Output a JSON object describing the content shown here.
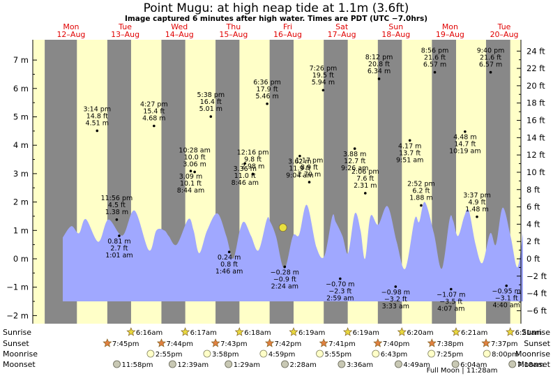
{
  "header": {
    "title": "Point Mugu: at high  neap tide at 1.1m (3.6ft)",
    "subtitle": "Image captured 6 minutes after high water. Times are PDT (UTC −7.0hrs)"
  },
  "chart_data": {
    "type": "area",
    "x_unit": "hours since Mon 12-Aug 00:00 PDT",
    "xlim": [
      0,
      204
    ],
    "ylim_m": [
      -2.2,
      7.55
    ],
    "ylim_ft": [
      -7.2,
      24.8
    ],
    "y_ticks_m": [
      -2,
      -1,
      0,
      1,
      2,
      3,
      4,
      5,
      6,
      7
    ],
    "y_ticks_m_labels": [
      "−2 m",
      "−1 m",
      "0 m",
      "1 m",
      "2 m",
      "3 m",
      "4 m",
      "5 m",
      "6 m",
      "7 m"
    ],
    "y_ticks_ft": [
      -6,
      -4,
      -2,
      0,
      2,
      4,
      6,
      8,
      10,
      12,
      14,
      16,
      18,
      20,
      22,
      24
    ],
    "y_ticks_ft_labels": [
      "−6 ft",
      "−4 ft",
      "−2 ft",
      "0 ft",
      "2 ft",
      "4 ft",
      "6 ft",
      "8 ft",
      "10 ft",
      "12 ft",
      "14 ft",
      "16 ft",
      "18 ft",
      "20 ft",
      "22 ft",
      "24 ft"
    ],
    "days": [
      {
        "name": "Mon",
        "date": "12–Aug"
      },
      {
        "name": "Tue",
        "date": "13–Aug"
      },
      {
        "name": "Wed",
        "date": "14–Aug"
      },
      {
        "name": "Thu",
        "date": "15–Aug"
      },
      {
        "name": "Fri",
        "date": "16–Aug"
      },
      {
        "name": "Sat",
        "date": "17–Aug"
      },
      {
        "name": "Sun",
        "date": "18–Aug"
      },
      {
        "name": "Mon",
        "date": "19–Aug"
      },
      {
        "name": "Tue",
        "date": "20–Aug"
      }
    ],
    "tide_curve": [
      [
        0,
        0.75
      ],
      [
        3.8,
        1.15
      ],
      [
        7.2,
        0.9
      ],
      [
        10.2,
        1.4
      ],
      [
        15.8,
        0.6
      ],
      [
        20.2,
        1.38
      ],
      [
        26.5,
        0.82
      ],
      [
        31.8,
        1.7
      ],
      [
        38.2,
        0.3
      ],
      [
        41.5,
        1.0
      ],
      [
        45,
        1.0
      ],
      [
        47,
        0.8
      ],
      [
        50.5,
        0.5
      ],
      [
        55.7,
        1.4
      ],
      [
        58,
        1.0
      ],
      [
        60.5,
        0.2
      ],
      [
        64,
        1.0
      ],
      [
        68.5,
        1.6
      ],
      [
        72.5,
        0.8
      ],
      [
        75.5,
        0.0
      ],
      [
        78.5,
        1.0
      ],
      [
        80.5,
        1.3
      ],
      [
        83.5,
        0.8
      ],
      [
        86.8,
        0.3
      ],
      [
        90.5,
        1.4
      ],
      [
        92,
        1.3
      ],
      [
        94.5,
        0.8
      ],
      [
        98.2,
        -0.35
      ],
      [
        102,
        0.8
      ],
      [
        104.8,
        0.85
      ],
      [
        108.2,
        1.9
      ],
      [
        112.5,
        0.4
      ],
      [
        116,
        0.1
      ],
      [
        119.5,
        1.5
      ],
      [
        121,
        1.3
      ],
      [
        124,
        0.8
      ],
      [
        126.5,
        0.2
      ],
      [
        129.5,
        1.6
      ],
      [
        132,
        1.0
      ],
      [
        134,
        0.0
      ],
      [
        136.4,
        1.5
      ],
      [
        139.8,
        1.2
      ],
      [
        144,
        1.85
      ],
      [
        148,
        0.6
      ],
      [
        151.8,
        -0.35
      ],
      [
        156,
        1.4
      ],
      [
        158,
        1.3
      ],
      [
        160.5,
        2.0
      ],
      [
        164.5,
        0.9
      ],
      [
        168,
        -0.35
      ],
      [
        171.5,
        1.4
      ],
      [
        173,
        1.35
      ],
      [
        175.2,
        0.8
      ],
      [
        178,
        1.5
      ],
      [
        180,
        1.7
      ],
      [
        183,
        0.5
      ],
      [
        186,
        -0.15
      ],
      [
        189.5,
        0.9
      ],
      [
        192,
        0.5
      ],
      [
        195,
        1.8
      ],
      [
        198.5,
        0.8
      ],
      [
        201.5,
        -0.3
      ],
      [
        204,
        0.9
      ]
    ],
    "night_bands": [
      [
        -8,
        6.27
      ],
      [
        19.75,
        30.28
      ],
      [
        43.73,
        54.3
      ],
      [
        67.72,
        78.32
      ],
      [
        91.7,
        102.32
      ],
      [
        115.68,
        126.32
      ],
      [
        139.67,
        150.33
      ],
      [
        163.63,
        174.35
      ],
      [
        187.62,
        198.35
      ]
    ],
    "tide_labels": [
      {
        "hours": 15.23,
        "time": "3:14 pm",
        "ft": "14.8 ft",
        "m": "4.51 m",
        "type": "high"
      },
      {
        "hours": 23.93,
        "time": "11:56 pm",
        "ft": "4.5 ft",
        "m": "1.38 m",
        "type": "high"
      },
      {
        "hours": 25.02,
        "time": "1:01 am",
        "ft": "2.7 ft",
        "m": "0.81 m",
        "type": "low"
      },
      {
        "hours": 40.45,
        "time": "4:27 pm",
        "ft": "15.4 ft",
        "m": "4.68 m",
        "type": "high"
      },
      {
        "hours": 56.73,
        "time": "8:44 am",
        "ft": "10.1 ft",
        "m": "3.09 m",
        "type": "low"
      },
      {
        "hours": 58.47,
        "time": "10:28 am",
        "ft": "10.0 ft",
        "m": "3.06 m",
        "type": "high"
      },
      {
        "hours": 65.63,
        "time": "5:38 pm",
        "ft": "16.4 ft",
        "m": "5.01 m",
        "type": "high"
      },
      {
        "hours": 73.77,
        "time": "1:46 am",
        "ft": "0.8 ft",
        "m": "0.24 m",
        "type": "low"
      },
      {
        "hours": 80.77,
        "time": "8:46 am",
        "ft": "11.0 ft",
        "m": "3.36 m",
        "type": "low"
      },
      {
        "hours": 84.27,
        "time": "12:16 pm",
        "ft": "9.8 ft",
        "m": "2.98 m",
        "type": "high"
      },
      {
        "hours": 90.6,
        "time": "6:36 pm",
        "ft": "17.9 ft",
        "m": "5.46 m",
        "type": "high"
      },
      {
        "hours": 98.4,
        "time": "2:24 am",
        "ft": "−0.9 ft",
        "m": "−0.28 m",
        "type": "low"
      },
      {
        "hours": 105.07,
        "time": "9:04 am",
        "ft": "11.9 ft",
        "m": "3.62 m",
        "type": "low"
      },
      {
        "hours": 109.28,
        "time": "1:17 pm",
        "ft": "8.9 ft",
        "m": "2.70 m",
        "type": "high"
      },
      {
        "hours": 115.43,
        "time": "7:26 pm",
        "ft": "19.5 ft",
        "m": "5.94 m",
        "type": "high"
      },
      {
        "hours": 122.98,
        "time": "2:59 am",
        "ft": "−2.3 ft",
        "m": "−0.70 m",
        "type": "low"
      },
      {
        "hours": 129.43,
        "time": "9:26 am",
        "ft": "12.7 ft",
        "m": "3.88 m",
        "type": "low"
      },
      {
        "hours": 134.1,
        "time": "2:06 pm",
        "ft": "7.6 ft",
        "m": "2.31 m",
        "type": "high"
      },
      {
        "hours": 140.2,
        "time": "8:12 pm",
        "ft": "20.8 ft",
        "m": "6.34 m",
        "type": "high"
      },
      {
        "hours": 147.55,
        "time": "3:33 am",
        "ft": "−3.2 ft",
        "m": "−0.98 m",
        "type": "low"
      },
      {
        "hours": 153.85,
        "time": "9:51 am",
        "ft": "13.7 ft",
        "m": "4.17 m",
        "type": "low"
      },
      {
        "hours": 158.87,
        "time": "2:52 pm",
        "ft": "6.2 ft",
        "m": "1.88 m",
        "type": "high"
      },
      {
        "hours": 164.93,
        "time": "8:56 pm",
        "ft": "21.6 ft",
        "m": "6.57 m",
        "type": "high"
      },
      {
        "hours": 172.12,
        "time": "4:07 am",
        "ft": "−3.5 ft",
        "m": "−1.07 m",
        "type": "low"
      },
      {
        "hours": 178.32,
        "time": "10:19 am",
        "ft": "14.7 ft",
        "m": "4.48 m",
        "type": "low"
      },
      {
        "hours": 183.62,
        "time": "3:37 pm",
        "ft": "4.9 ft",
        "m": "1.48 m",
        "type": "high"
      },
      {
        "hours": 189.67,
        "time": "9:40 pm",
        "ft": "21.6 ft",
        "m": "6.57 m",
        "type": "high"
      },
      {
        "hours": 196.67,
        "time": "4:40 am",
        "ft": "−3.1 ft",
        "m": "−0.95 m",
        "type": "low"
      }
    ],
    "current_marker": {
      "hours": 97.6,
      "m": 1.1
    },
    "astro_rows": {
      "labels": [
        "Sunrise",
        "Sunset",
        "Moonrise",
        "Moonset"
      ],
      "sunrise": [
        {
          "hours": 30.27,
          "text": "6:16am"
        },
        {
          "hours": 54.28,
          "text": "6:17am"
        },
        {
          "hours": 78.3,
          "text": "6:18am"
        },
        {
          "hours": 102.32,
          "text": "6:19am"
        },
        {
          "hours": 126.32,
          "text": "6:19am"
        },
        {
          "hours": 150.33,
          "text": "6:20am"
        },
        {
          "hours": 174.35,
          "text": "6:21am"
        },
        {
          "hours": 198.35,
          "text": "6:21am"
        }
      ],
      "sunset": [
        {
          "hours": 19.75,
          "text": "7:45pm"
        },
        {
          "hours": 43.73,
          "text": "7:44pm"
        },
        {
          "hours": 67.72,
          "text": "7:43pm"
        },
        {
          "hours": 91.7,
          "text": "7:42pm"
        },
        {
          "hours": 115.68,
          "text": "7:41pm"
        },
        {
          "hours": 139.67,
          "text": "7:40pm"
        },
        {
          "hours": 163.63,
          "text": "7:38pm"
        },
        {
          "hours": 187.62,
          "text": "7:37pm"
        }
      ],
      "moonrise": [
        {
          "hours": 38.92,
          "text": "2:55pm"
        },
        {
          "hours": 63.97,
          "text": "3:58pm"
        },
        {
          "hours": 88.98,
          "text": "4:59pm"
        },
        {
          "hours": 113.92,
          "text": "5:55pm"
        },
        {
          "hours": 138.72,
          "text": "6:43pm"
        },
        {
          "hours": 163.42,
          "text": "7:25pm"
        },
        {
          "hours": 188.0,
          "text": "8:00pm"
        }
      ],
      "moonset": [
        {
          "hours": 23.97,
          "text": "11:58pm"
        },
        {
          "hours": 48.65,
          "text": "12:39am"
        },
        {
          "hours": 73.48,
          "text": "1:29am"
        },
        {
          "hours": 98.47,
          "text": "2:28am"
        },
        {
          "hours": 123.6,
          "text": "3:36am"
        },
        {
          "hours": 148.82,
          "text": "4:49am"
        },
        {
          "hours": 174.07,
          "text": "6:04am"
        },
        {
          "hours": 199.3,
          "text": "7:18am"
        }
      ],
      "full_moon_text": "Full Moon | 11:28am",
      "full_moon_hours": 179.47
    },
    "colors": {
      "day": "#ffffc8",
      "night": "#888888",
      "water": "#a0a8ff",
      "day_label": "#e00000",
      "current_marker": "#e8e040",
      "sun": "#e8d840",
      "sunset": "#e08040",
      "moon": "#ffffc8",
      "moonset": "#c8c8b4"
    }
  }
}
